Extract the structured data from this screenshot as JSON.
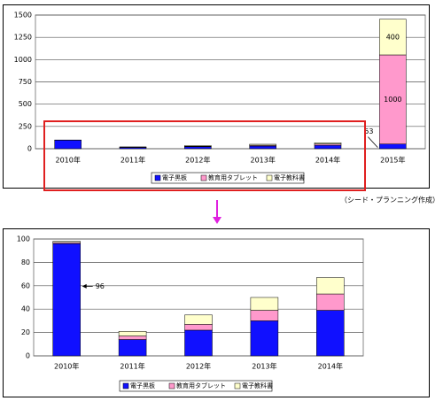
{
  "chart_data": [
    {
      "type": "bar",
      "stacked": true,
      "categories": [
        "2010年",
        "2011年",
        "2012年",
        "2013年",
        "2014年",
        "2015年"
      ],
      "series": [
        {
          "name": "電子黒板",
          "color": "#1010ff",
          "values": [
            96,
            14,
            22,
            30,
            39,
            53
          ]
        },
        {
          "name": "教育用タブレット",
          "color": "#ff99cc",
          "values": [
            1,
            3,
            5,
            9,
            14,
            1000
          ]
        },
        {
          "name": "電子教科書",
          "color": "#ffffcc",
          "values": [
            1,
            4,
            8,
            11,
            14,
            400
          ]
        }
      ],
      "ylim": [
        0,
        1500
      ],
      "yticks": [
        0,
        250,
        500,
        750,
        1000,
        1250,
        1500
      ],
      "grid": true
    },
    {
      "type": "bar",
      "stacked": true,
      "categories": [
        "2010年",
        "2011年",
        "2012年",
        "2013年",
        "2014年"
      ],
      "series": [
        {
          "name": "電子黒板",
          "color": "#1010ff",
          "values": [
            96,
            14,
            22,
            30,
            39
          ]
        },
        {
          "name": "教育用タブレット",
          "color": "#ff99cc",
          "values": [
            1,
            3,
            5,
            9,
            14
          ]
        },
        {
          "name": "電子教科書",
          "color": "#ffffcc",
          "values": [
            1,
            4,
            8,
            11,
            14
          ]
        }
      ],
      "ylim": [
        0,
        100
      ],
      "yticks": [
        0,
        20,
        40,
        60,
        80,
        100
      ],
      "grid": true
    }
  ],
  "source": "（シード・プランニング作成）"
}
